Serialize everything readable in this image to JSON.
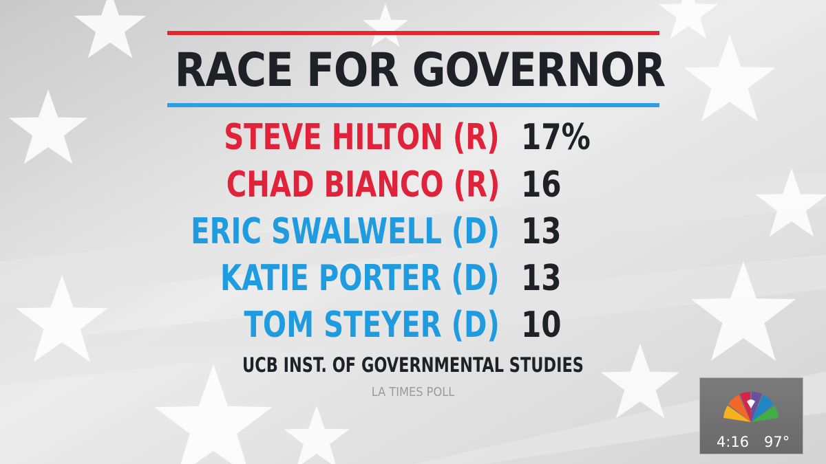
{
  "title": "RACE FOR GOVERNOR",
  "candidates": [
    {
      "name": "STEVE HILTON (R)",
      "value": "17%",
      "party": "R"
    },
    {
      "name": "CHAD BIANCO (R)",
      "value": "16",
      "party": "R"
    },
    {
      "name": "ERIC SWALWELL (D)",
      "value": "13",
      "party": "D"
    },
    {
      "name": "KATIE PORTER (D)",
      "value": "13",
      "party": "D"
    },
    {
      "name": "TOM STEYER (D)",
      "value": "10",
      "party": "D"
    }
  ],
  "source": "UCB INST. OF GOVERNMENTAL STUDIES",
  "poll": "LA TIMES POLL",
  "bug": {
    "time": "4:16",
    "temperature": "97°"
  },
  "colors": {
    "republican": "#e0233a",
    "democrat": "#1f9be0",
    "rule_red": "#e3262f",
    "rule_blue": "#2a9fe3",
    "title_text": "#1e2228"
  }
}
